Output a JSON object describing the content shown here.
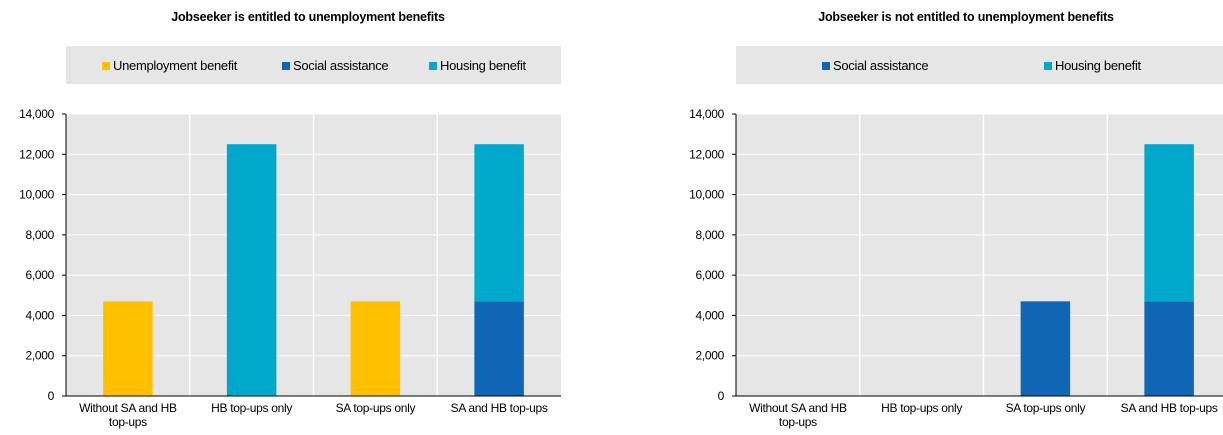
{
  "colors": {
    "unemployment_benefit": "#ffc000",
    "social_assistance": "#0f66b5",
    "housing_benefit": "#00a8cc",
    "plot_background": "#e6e6e6",
    "legend_background": "#e6e6e6"
  },
  "chart_data": [
    {
      "type": "bar",
      "stacked": true,
      "title": "Jobseeker is entitled to unemployment benefits",
      "xlabel": "",
      "ylabel": "",
      "ylim": [
        0,
        14000
      ],
      "yticks": [
        "0",
        "2,000",
        "4,000",
        "6,000",
        "8,000",
        "10,000",
        "12,000",
        "14,000"
      ],
      "grid": true,
      "legend_position": "top",
      "categories": [
        [
          "Without SA and HB",
          "top-ups"
        ],
        [
          "HB top-ups only"
        ],
        [
          "SA top-ups only"
        ],
        [
          "SA and HB top-ups"
        ]
      ],
      "series": [
        {
          "name": "Unemployment benefit",
          "color": "#ffc000",
          "values": [
            4700,
            0,
            4700,
            0
          ]
        },
        {
          "name": "Social assistance",
          "color": "#0f66b5",
          "values": [
            0,
            0,
            0,
            4700
          ]
        },
        {
          "name": "Housing benefit",
          "color": "#00a8cc",
          "values": [
            0,
            12500,
            0,
            7800
          ]
        }
      ]
    },
    {
      "type": "bar",
      "stacked": true,
      "title": "Jobseeker is not entitled to unemployment benefits",
      "xlabel": "",
      "ylabel": "",
      "ylim": [
        0,
        14000
      ],
      "yticks": [
        "0",
        "2,000",
        "4,000",
        "6,000",
        "8,000",
        "10,000",
        "12,000",
        "14,000"
      ],
      "grid": true,
      "legend_position": "top",
      "categories": [
        [
          "Without SA and HB",
          "top-ups"
        ],
        [
          "HB top-ups only"
        ],
        [
          "SA top-ups only"
        ],
        [
          "SA and HB top-ups"
        ]
      ],
      "series": [
        {
          "name": "Social assistance",
          "color": "#0f66b5",
          "values": [
            0,
            0,
            4700,
            4700
          ]
        },
        {
          "name": "Housing benefit",
          "color": "#00a8cc",
          "values": [
            0,
            0,
            0,
            7800
          ]
        }
      ]
    }
  ]
}
